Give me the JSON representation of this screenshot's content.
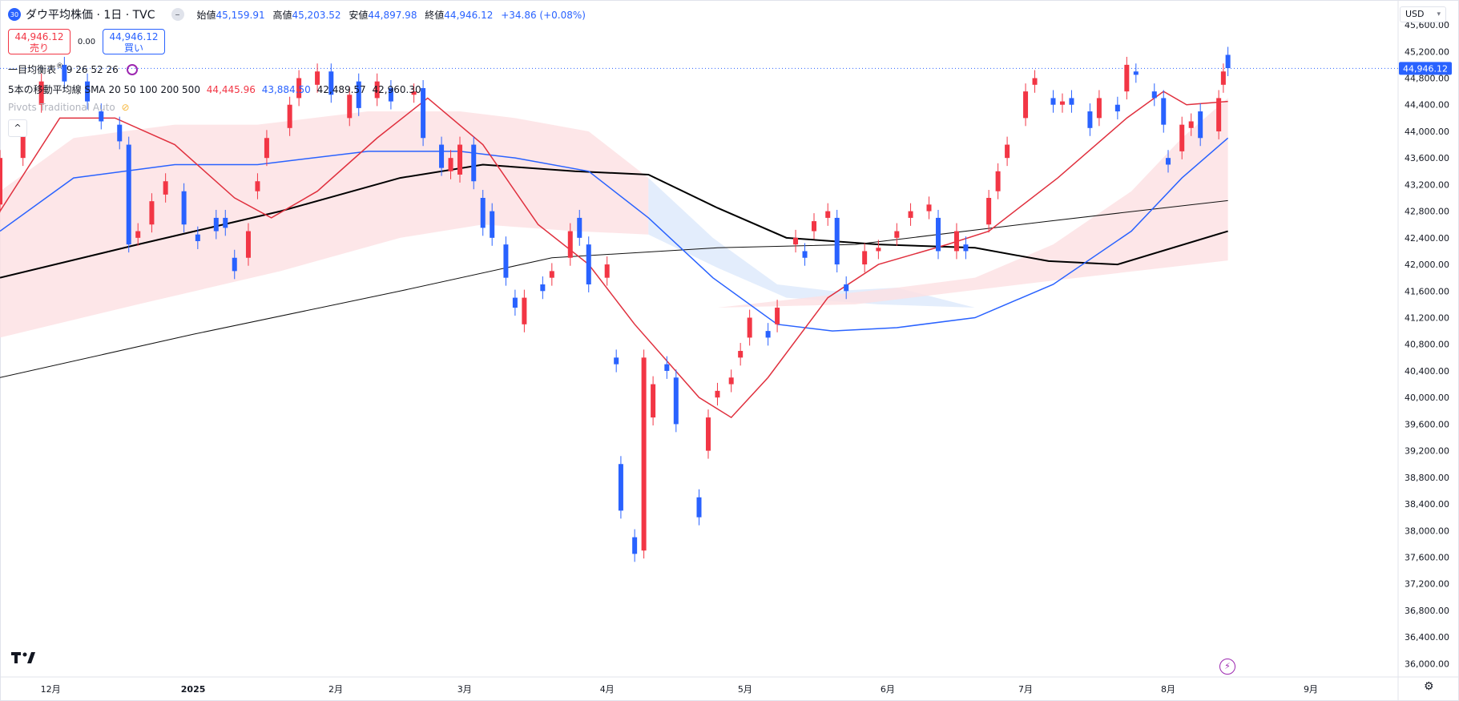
{
  "header": {
    "symbol_badge": "30",
    "title": "ダウ平均株価 · 1日 · TVC",
    "ohlc": [
      {
        "label": "始値",
        "value": "45,159.91"
      },
      {
        "label": "高値",
        "value": "45,203.52"
      },
      {
        "label": "安値",
        "value": "44,897.98"
      },
      {
        "label": "終値",
        "value": "44,946.12"
      }
    ],
    "change": "+34.86 (+0.08%)"
  },
  "trade": {
    "sell_price": "44,946.12",
    "sell_label": "売り",
    "spread": "0.00",
    "buy_price": "44,946.12",
    "buy_label": "買い"
  },
  "indicators": {
    "ichimoku_label": "一目均衡表",
    "ichimoku_params": "9 26 52 26",
    "sma_label": "5本の移動平均線 SMA 20 50 100 200 500",
    "sma_values": [
      "44,445.96",
      "43,884.50",
      "42,489.57",
      "42,960.30"
    ],
    "pivots_label": "Pivots Traditional Auto"
  },
  "currency": "USD",
  "collapse_glyph": "^",
  "colors": {
    "up": "#f23645",
    "down": "#2962ff",
    "sma20": "#e0303e",
    "sma50": "#2962ff",
    "sma100": "#000000",
    "sma200": "#111111",
    "cloud_bull": "#fde0e2",
    "cloud_bear": "#dce9fb"
  },
  "icons": [
    "tradingview-logo-icon",
    "lightning-icon",
    "gear-icon",
    "refresh-icon",
    "chevron-down-icon",
    "chevron-up-icon"
  ],
  "chart_data": {
    "type": "candlestick",
    "y_axis": {
      "ticks": [
        "45,600.00",
        "45,200.00",
        "44,800.00",
        "44,400.00",
        "44,000.00",
        "43,600.00",
        "43,200.00",
        "42,800.00",
        "42,400.00",
        "42,000.00",
        "41,600.00",
        "41,200.00",
        "40,800.00",
        "40,400.00",
        "40,000.00",
        "39,600.00",
        "39,200.00",
        "38,800.00",
        "38,400.00",
        "38,000.00",
        "37,600.00",
        "37,200.00",
        "36,800.00",
        "36,400.00",
        "36,000.00"
      ],
      "ylim": [
        35800,
        45950
      ]
    },
    "x_axis": {
      "labels": [
        "12月",
        "2025",
        "2月",
        "3月",
        "4月",
        "5月",
        "6月",
        "7月",
        "8月",
        "9月"
      ],
      "label_dates": [
        "2024-12-01",
        "2025-01-01",
        "2025-02-01",
        "2025-03-01",
        "2025-04-01",
        "2025-05-01",
        "2025-06-01",
        "2025-07-01",
        "2025-08-01",
        "2025-09-01"
      ],
      "xlim": [
        "2024-11-20",
        "2025-09-20"
      ]
    },
    "last_price": 44946.12,
    "last_price_label": "44,946.12",
    "candles": [
      [
        "2024-11-20",
        42900,
        43600
      ],
      [
        "2024-11-25",
        43600,
        44050
      ],
      [
        "2024-11-29",
        44400,
        44750
      ],
      [
        "2024-12-04",
        45000,
        44750
      ],
      [
        "2024-12-09",
        44750,
        44450
      ],
      [
        "2024-12-12",
        44300,
        44150
      ],
      [
        "2024-12-16",
        44100,
        43850
      ],
      [
        "2024-12-18",
        43800,
        42300
      ],
      [
        "2024-12-20",
        42400,
        42500
      ],
      [
        "2024-12-23",
        42600,
        42950
      ],
      [
        "2024-12-26",
        43050,
        43250
      ],
      [
        "2024-12-30",
        43100,
        42600
      ],
      [
        "2025-01-02",
        42450,
        42350
      ],
      [
        "2025-01-06",
        42700,
        42500
      ],
      [
        "2025-01-08",
        42700,
        42550
      ],
      [
        "2025-01-10",
        42100,
        41900
      ],
      [
        "2025-01-13",
        42100,
        42500
      ],
      [
        "2025-01-15",
        43100,
        43250
      ],
      [
        "2025-01-17",
        43600,
        43900
      ],
      [
        "2025-01-22",
        44050,
        44400
      ],
      [
        "2025-01-24",
        44500,
        44800
      ],
      [
        "2025-01-28",
        44700,
        44900
      ],
      [
        "2025-01-31",
        44900,
        44550
      ],
      [
        "2025-02-04",
        44200,
        44550
      ],
      [
        "2025-02-06",
        44750,
        44350
      ],
      [
        "2025-02-10",
        44500,
        44750
      ],
      [
        "2025-02-13",
        44650,
        44450
      ],
      [
        "2025-02-18",
        44550,
        44600
      ],
      [
        "2025-02-20",
        44650,
        43900
      ],
      [
        "2025-02-24",
        43800,
        43450
      ],
      [
        "2025-02-26",
        43400,
        43600
      ],
      [
        "2025-02-28",
        43350,
        43800
      ],
      [
        "2025-03-03",
        43800,
        43250
      ],
      [
        "2025-03-05",
        43000,
        42550
      ],
      [
        "2025-03-07",
        42800,
        42400
      ],
      [
        "2025-03-10",
        42300,
        41800
      ],
      [
        "2025-03-12",
        41500,
        41350
      ],
      [
        "2025-03-14",
        41100,
        41500
      ],
      [
        "2025-03-18",
        41700,
        41600
      ],
      [
        "2025-03-20",
        41800,
        41900
      ],
      [
        "2025-03-24",
        42100,
        42500
      ],
      [
        "2025-03-26",
        42700,
        42400
      ],
      [
        "2025-03-28",
        42300,
        41700
      ],
      [
        "2025-04-01",
        41800,
        42000
      ],
      [
        "2025-04-03",
        40600,
        40500
      ],
      [
        "2025-04-04",
        39000,
        38300
      ],
      [
        "2025-04-07",
        37900,
        37650
      ],
      [
        "2025-04-09",
        37700,
        40600
      ],
      [
        "2025-04-11",
        39700,
        40200
      ],
      [
        "2025-04-14",
        40500,
        40400
      ],
      [
        "2025-04-16",
        40300,
        39600
      ],
      [
        "2025-04-21",
        38500,
        38200
      ],
      [
        "2025-04-23",
        39200,
        39700
      ],
      [
        "2025-04-25",
        40000,
        40100
      ],
      [
        "2025-04-28",
        40200,
        40300
      ],
      [
        "2025-04-30",
        40600,
        40700
      ],
      [
        "2025-05-02",
        40900,
        41200
      ],
      [
        "2025-05-06",
        41000,
        40900
      ],
      [
        "2025-05-08",
        41100,
        41350
      ],
      [
        "2025-05-12",
        42300,
        42400
      ],
      [
        "2025-05-14",
        42200,
        42100
      ],
      [
        "2025-05-16",
        42500,
        42650
      ],
      [
        "2025-05-19",
        42700,
        42800
      ],
      [
        "2025-05-21",
        42700,
        42000
      ],
      [
        "2025-05-23",
        41700,
        41600
      ],
      [
        "2025-05-27",
        42000,
        42200
      ],
      [
        "2025-05-30",
        42200,
        42250
      ],
      [
        "2025-06-03",
        42400,
        42500
      ],
      [
        "2025-06-06",
        42700,
        42800
      ],
      [
        "2025-06-10",
        42800,
        42900
      ],
      [
        "2025-06-12",
        42700,
        42200
      ],
      [
        "2025-06-16",
        42200,
        42500
      ],
      [
        "2025-06-18",
        42300,
        42200
      ],
      [
        "2025-06-23",
        42600,
        43000
      ],
      [
        "2025-06-25",
        43100,
        43400
      ],
      [
        "2025-06-27",
        43600,
        43800
      ],
      [
        "2025-07-01",
        44200,
        44600
      ],
      [
        "2025-07-03",
        44700,
        44800
      ],
      [
        "2025-07-07",
        44500,
        44400
      ],
      [
        "2025-07-09",
        44400,
        44450
      ],
      [
        "2025-07-11",
        44500,
        44400
      ],
      [
        "2025-07-15",
        44300,
        44050
      ],
      [
        "2025-07-17",
        44200,
        44500
      ],
      [
        "2025-07-21",
        44400,
        44300
      ],
      [
        "2025-07-23",
        44600,
        45000
      ],
      [
        "2025-07-25",
        44900,
        44850
      ],
      [
        "2025-07-29",
        44600,
        44500
      ],
      [
        "2025-07-31",
        44500,
        44100
      ],
      [
        "2025-08-01",
        43600,
        43500
      ],
      [
        "2025-08-04",
        43700,
        44100
      ],
      [
        "2025-08-06",
        44050,
        44150
      ],
      [
        "2025-08-08",
        44300,
        43900
      ],
      [
        "2025-08-12",
        44000,
        44500
      ],
      [
        "2025-08-13",
        44700,
        44900
      ],
      [
        "2025-08-14",
        45150,
        44950
      ]
    ],
    "sma20": [
      [
        "2024-11-20",
        42800
      ],
      [
        "2024-12-03",
        44200
      ],
      [
        "2024-12-15",
        44200
      ],
      [
        "2024-12-28",
        43800
      ],
      [
        "2025-01-10",
        43000
      ],
      [
        "2025-01-18",
        42700
      ],
      [
        "2025-01-28",
        43100
      ],
      [
        "2025-02-10",
        43900
      ],
      [
        "2025-02-21",
        44500
      ],
      [
        "2025-03-05",
        43800
      ],
      [
        "2025-03-17",
        42600
      ],
      [
        "2025-03-28",
        42000
      ],
      [
        "2025-04-07",
        41100
      ],
      [
        "2025-04-21",
        40000
      ],
      [
        "2025-04-28",
        39700
      ],
      [
        "2025-05-06",
        40300
      ],
      [
        "2025-05-19",
        41500
      ],
      [
        "2025-05-30",
        42000
      ],
      [
        "2025-06-14",
        42300
      ],
      [
        "2025-06-23",
        42500
      ],
      [
        "2025-07-08",
        43300
      ],
      [
        "2025-07-23",
        44200
      ],
      [
        "2025-07-31",
        44600
      ],
      [
        "2025-08-05",
        44400
      ],
      [
        "2025-08-14",
        44450
      ]
    ],
    "sma50": [
      [
        "2024-11-20",
        42500
      ],
      [
        "2024-12-06",
        43300
      ],
      [
        "2024-12-28",
        43500
      ],
      [
        "2025-01-15",
        43500
      ],
      [
        "2025-02-08",
        43700
      ],
      [
        "2025-02-28",
        43700
      ],
      [
        "2025-03-12",
        43600
      ],
      [
        "2025-03-28",
        43400
      ],
      [
        "2025-04-10",
        42700
      ],
      [
        "2025-04-24",
        41800
      ],
      [
        "2025-05-08",
        41100
      ],
      [
        "2025-05-20",
        41000
      ],
      [
        "2025-06-03",
        41050
      ],
      [
        "2025-06-20",
        41200
      ],
      [
        "2025-07-07",
        41700
      ],
      [
        "2025-07-24",
        42500
      ],
      [
        "2025-08-04",
        43300
      ],
      [
        "2025-08-14",
        43900
      ]
    ],
    "sma100": [
      [
        "2024-11-20",
        41800
      ],
      [
        "2024-12-20",
        42300
      ],
      [
        "2025-01-20",
        42800
      ],
      [
        "2025-02-15",
        43300
      ],
      [
        "2025-03-05",
        43500
      ],
      [
        "2025-03-25",
        43400
      ],
      [
        "2025-04-10",
        43350
      ],
      [
        "2025-04-25",
        42850
      ],
      [
        "2025-05-10",
        42400
      ],
      [
        "2025-05-30",
        42300
      ],
      [
        "2025-06-20",
        42250
      ],
      [
        "2025-07-06",
        42050
      ],
      [
        "2025-07-21",
        42000
      ],
      [
        "2025-08-14",
        42500
      ]
    ],
    "sma200": [
      [
        "2024-11-20",
        40300
      ],
      [
        "2025-01-01",
        40950
      ],
      [
        "2025-02-15",
        41600
      ],
      [
        "2025-03-20",
        42100
      ],
      [
        "2025-04-25",
        42250
      ],
      [
        "2025-05-25",
        42300
      ],
      [
        "2025-07-06",
        42650
      ],
      [
        "2025-08-14",
        42960
      ]
    ]
  }
}
